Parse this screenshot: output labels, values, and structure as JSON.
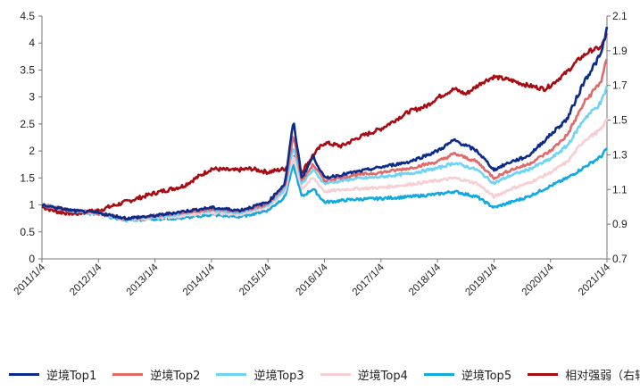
{
  "chart_data": {
    "type": "line",
    "title": "",
    "xlabel": "",
    "ylabel": "",
    "x_range": [
      "2011/1/4",
      "2021/1/4"
    ],
    "x_tick_labels": [
      "2011/1/4",
      "2012/1/4",
      "2013/1/4",
      "2014/1/4",
      "2015/1/4",
      "2016/1/4",
      "2017/1/4",
      "2018/1/4",
      "2019/1/4",
      "2020/1/4",
      "2021/1/4"
    ],
    "y_left": {
      "min": 0,
      "max": 4.5,
      "ticks": [
        "0",
        "0.5",
        "1",
        "1.5",
        "2",
        "2.5",
        "3",
        "3.5",
        "4",
        "4.5"
      ]
    },
    "y_right": {
      "min": 0.7,
      "max": 2.1,
      "ticks": [
        "0.7",
        "0.9",
        "1.1",
        "1.3",
        "1.5",
        "1.7",
        "1.9",
        "2.1"
      ]
    },
    "grid": false,
    "legend_position": "bottom",
    "series": [
      {
        "name": "逆境Top1",
        "axis": "left",
        "color": "#0b2a8a",
        "values": [
          [
            2011.0,
            1.0
          ],
          [
            2011.5,
            0.9
          ],
          [
            2012.0,
            0.85
          ],
          [
            2012.5,
            0.75
          ],
          [
            2013.0,
            0.8
          ],
          [
            2013.5,
            0.88
          ],
          [
            2014.0,
            0.95
          ],
          [
            2014.5,
            0.9
          ],
          [
            2015.0,
            1.05
          ],
          [
            2015.3,
            1.4
          ],
          [
            2015.45,
            2.55
          ],
          [
            2015.6,
            1.5
          ],
          [
            2015.8,
            1.9
          ],
          [
            2016.0,
            1.5
          ],
          [
            2016.5,
            1.6
          ],
          [
            2017.0,
            1.7
          ],
          [
            2017.5,
            1.8
          ],
          [
            2018.0,
            2.0
          ],
          [
            2018.3,
            2.2
          ],
          [
            2018.7,
            2.0
          ],
          [
            2019.0,
            1.65
          ],
          [
            2019.3,
            1.8
          ],
          [
            2019.6,
            1.9
          ],
          [
            2020.0,
            2.3
          ],
          [
            2020.3,
            2.6
          ],
          [
            2020.6,
            3.3
          ],
          [
            2020.9,
            3.8
          ],
          [
            2021.0,
            4.3
          ]
        ]
      },
      {
        "name": "逆境Top2",
        "axis": "left",
        "color": "#e06a6a",
        "values": [
          [
            2011.0,
            1.0
          ],
          [
            2011.5,
            0.9
          ],
          [
            2012.0,
            0.85
          ],
          [
            2012.5,
            0.75
          ],
          [
            2013.0,
            0.8
          ],
          [
            2013.5,
            0.86
          ],
          [
            2014.0,
            0.92
          ],
          [
            2014.5,
            0.88
          ],
          [
            2015.0,
            1.02
          ],
          [
            2015.3,
            1.35
          ],
          [
            2015.45,
            2.3
          ],
          [
            2015.6,
            1.45
          ],
          [
            2015.8,
            1.75
          ],
          [
            2016.0,
            1.45
          ],
          [
            2016.5,
            1.55
          ],
          [
            2017.0,
            1.6
          ],
          [
            2017.5,
            1.68
          ],
          [
            2018.0,
            1.8
          ],
          [
            2018.3,
            1.95
          ],
          [
            2018.7,
            1.8
          ],
          [
            2019.0,
            1.5
          ],
          [
            2019.3,
            1.65
          ],
          [
            2019.6,
            1.75
          ],
          [
            2020.0,
            2.0
          ],
          [
            2020.3,
            2.3
          ],
          [
            2020.6,
            2.9
          ],
          [
            2020.9,
            3.3
          ],
          [
            2021.0,
            3.7
          ]
        ]
      },
      {
        "name": "逆境Top3",
        "axis": "left",
        "color": "#6fd3f5",
        "values": [
          [
            2011.0,
            1.0
          ],
          [
            2011.5,
            0.9
          ],
          [
            2012.0,
            0.84
          ],
          [
            2012.5,
            0.74
          ],
          [
            2013.0,
            0.78
          ],
          [
            2013.5,
            0.84
          ],
          [
            2014.0,
            0.9
          ],
          [
            2014.5,
            0.86
          ],
          [
            2015.0,
            1.0
          ],
          [
            2015.3,
            1.3
          ],
          [
            2015.45,
            2.1
          ],
          [
            2015.6,
            1.4
          ],
          [
            2015.8,
            1.65
          ],
          [
            2016.0,
            1.4
          ],
          [
            2016.5,
            1.48
          ],
          [
            2017.0,
            1.52
          ],
          [
            2017.5,
            1.58
          ],
          [
            2018.0,
            1.68
          ],
          [
            2018.3,
            1.78
          ],
          [
            2018.7,
            1.65
          ],
          [
            2019.0,
            1.4
          ],
          [
            2019.3,
            1.55
          ],
          [
            2019.6,
            1.65
          ],
          [
            2020.0,
            1.85
          ],
          [
            2020.3,
            2.1
          ],
          [
            2020.6,
            2.6
          ],
          [
            2020.9,
            2.9
          ],
          [
            2021.0,
            3.2
          ]
        ]
      },
      {
        "name": "逆境Top4",
        "axis": "left",
        "color": "#f7cfd3",
        "values": [
          [
            2011.0,
            1.0
          ],
          [
            2011.5,
            0.9
          ],
          [
            2012.0,
            0.83
          ],
          [
            2012.5,
            0.73
          ],
          [
            2013.0,
            0.76
          ],
          [
            2013.5,
            0.8
          ],
          [
            2014.0,
            0.86
          ],
          [
            2014.5,
            0.82
          ],
          [
            2015.0,
            0.96
          ],
          [
            2015.3,
            1.25
          ],
          [
            2015.45,
            1.9
          ],
          [
            2015.6,
            1.3
          ],
          [
            2015.8,
            1.5
          ],
          [
            2016.0,
            1.25
          ],
          [
            2016.5,
            1.3
          ],
          [
            2017.0,
            1.32
          ],
          [
            2017.5,
            1.38
          ],
          [
            2018.0,
            1.45
          ],
          [
            2018.3,
            1.5
          ],
          [
            2018.7,
            1.4
          ],
          [
            2019.0,
            1.15
          ],
          [
            2019.3,
            1.3
          ],
          [
            2019.6,
            1.4
          ],
          [
            2020.0,
            1.6
          ],
          [
            2020.3,
            1.8
          ],
          [
            2020.6,
            2.2
          ],
          [
            2020.9,
            2.4
          ],
          [
            2021.0,
            2.6
          ]
        ]
      },
      {
        "name": "逆境Top5",
        "axis": "left",
        "color": "#11a9e0",
        "values": [
          [
            2011.0,
            1.0
          ],
          [
            2011.5,
            0.9
          ],
          [
            2012.0,
            0.82
          ],
          [
            2012.5,
            0.72
          ],
          [
            2013.0,
            0.74
          ],
          [
            2013.5,
            0.76
          ],
          [
            2014.0,
            0.82
          ],
          [
            2014.5,
            0.78
          ],
          [
            2015.0,
            0.9
          ],
          [
            2015.3,
            1.15
          ],
          [
            2015.45,
            1.75
          ],
          [
            2015.6,
            1.15
          ],
          [
            2015.8,
            1.3
          ],
          [
            2016.0,
            1.05
          ],
          [
            2016.5,
            1.1
          ],
          [
            2017.0,
            1.12
          ],
          [
            2017.5,
            1.15
          ],
          [
            2018.0,
            1.2
          ],
          [
            2018.3,
            1.25
          ],
          [
            2018.7,
            1.15
          ],
          [
            2019.0,
            0.95
          ],
          [
            2019.3,
            1.05
          ],
          [
            2019.6,
            1.15
          ],
          [
            2020.0,
            1.35
          ],
          [
            2020.3,
            1.5
          ],
          [
            2020.6,
            1.7
          ],
          [
            2020.9,
            1.9
          ],
          [
            2021.0,
            2.05
          ]
        ]
      },
      {
        "name": "相对强弱（右轴）",
        "axis": "right",
        "color": "#a80c12",
        "values": [
          [
            2011.0,
            1.0
          ],
          [
            2011.3,
            0.97
          ],
          [
            2011.6,
            0.96
          ],
          [
            2012.0,
            0.98
          ],
          [
            2012.5,
            1.03
          ],
          [
            2013.0,
            1.08
          ],
          [
            2013.5,
            1.12
          ],
          [
            2013.8,
            1.18
          ],
          [
            2014.0,
            1.22
          ],
          [
            2014.4,
            1.21
          ],
          [
            2014.7,
            1.22
          ],
          [
            2015.0,
            1.2
          ],
          [
            2015.3,
            1.22
          ],
          [
            2015.5,
            1.3
          ],
          [
            2015.6,
            1.2
          ],
          [
            2015.8,
            1.3
          ],
          [
            2016.0,
            1.37
          ],
          [
            2016.3,
            1.35
          ],
          [
            2016.6,
            1.4
          ],
          [
            2017.0,
            1.45
          ],
          [
            2017.5,
            1.55
          ],
          [
            2017.8,
            1.58
          ],
          [
            2018.0,
            1.63
          ],
          [
            2018.3,
            1.68
          ],
          [
            2018.5,
            1.65
          ],
          [
            2018.8,
            1.72
          ],
          [
            2019.0,
            1.75
          ],
          [
            2019.3,
            1.73
          ],
          [
            2019.6,
            1.7
          ],
          [
            2019.9,
            1.68
          ],
          [
            2020.0,
            1.7
          ],
          [
            2020.3,
            1.78
          ],
          [
            2020.5,
            1.85
          ],
          [
            2020.7,
            1.9
          ],
          [
            2020.9,
            1.92
          ],
          [
            2021.0,
            2.0
          ]
        ]
      }
    ]
  }
}
